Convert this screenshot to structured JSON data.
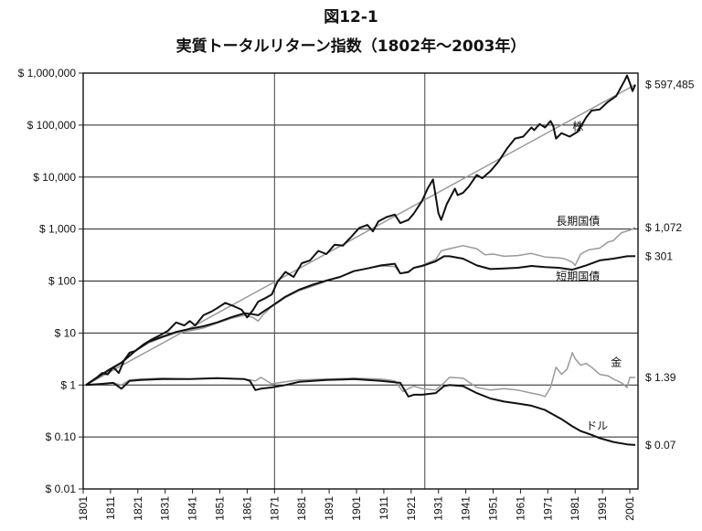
{
  "figure_number": "図12-1",
  "title": "実質トータルリターン指数（1802年〜2003年）",
  "chart_data": {
    "type": "line",
    "title": "実質トータルリターン指数（1802年〜2003年）",
    "y_scale": "log",
    "ylim": [
      0.01,
      1000000
    ],
    "xlim": [
      1801,
      2004
    ],
    "grid": true,
    "y_tick_values": [
      0.01,
      0.1,
      1,
      10,
      100,
      1000,
      10000,
      100000,
      1000000
    ],
    "y_tick_labels": [
      "$ 0.01",
      "$ 0.10",
      "$ 1",
      "$ 10",
      "$ 100",
      "$ 1,000",
      "$ 10,000",
      "$ 100,000",
      "$ 1,000,000"
    ],
    "x_tick_values": [
      1801,
      1811,
      1821,
      1831,
      1841,
      1851,
      1861,
      1871,
      1881,
      1891,
      1901,
      1911,
      1921,
      1931,
      1941,
      1951,
      1961,
      1971,
      1981,
      1991,
      2001
    ],
    "x_tick_labels": [
      "1801",
      "1811",
      "1821",
      "1831",
      "1841",
      "1851",
      "1861",
      "1871",
      "1881",
      "1891",
      "1901",
      "1911",
      "1921",
      "1931",
      "1941",
      "1951",
      "1961",
      "1971",
      "1981",
      "1991",
      "2001"
    ],
    "vertical_markers": [
      1871,
      1926
    ],
    "series": [
      {
        "name": "株",
        "end_label": "$ 597,485",
        "color": "#111111",
        "label_at": [
          1982,
          80000
        ],
        "x": [
          1802,
          1806,
          1808,
          1810,
          1812,
          1814,
          1816,
          1818,
          1820,
          1823,
          1826,
          1829,
          1832,
          1835,
          1838,
          1840,
          1842,
          1845,
          1848,
          1850,
          1853,
          1856,
          1859,
          1861,
          1863,
          1865,
          1867,
          1870,
          1872,
          1875,
          1878,
          1881,
          1884,
          1887,
          1890,
          1893,
          1896,
          1899,
          1902,
          1905,
          1907,
          1909,
          1912,
          1915,
          1917,
          1920,
          1922,
          1925,
          1927,
          1929,
          1931,
          1932,
          1934,
          1937,
          1938,
          1940,
          1942,
          1945,
          1947,
          1950,
          1953,
          1956,
          1959,
          1962,
          1965,
          1966,
          1968,
          1970,
          1972,
          1973,
          1974,
          1976,
          1979,
          1982,
          1985,
          1987,
          1990,
          1993,
          1996,
          1999,
          2000,
          2001,
          2002,
          2003
        ],
        "y": [
          1,
          1.4,
          1.7,
          1.6,
          2.2,
          1.7,
          3.0,
          4.2,
          4.5,
          6.0,
          7.5,
          9.0,
          11,
          16,
          14,
          17,
          14,
          22,
          26,
          30,
          38,
          33,
          28,
          20,
          27,
          40,
          45,
          55,
          95,
          150,
          120,
          220,
          250,
          380,
          330,
          500,
          480,
          700,
          1050,
          1200,
          900,
          1400,
          1700,
          1900,
          1300,
          1500,
          2000,
          3500,
          6000,
          9000,
          2000,
          1500,
          3000,
          6000,
          4500,
          5000,
          6500,
          11000,
          9500,
          13000,
          20000,
          35000,
          55000,
          60000,
          90000,
          80000,
          105000,
          90000,
          120000,
          95000,
          55000,
          70000,
          60000,
          75000,
          140000,
          190000,
          200000,
          280000,
          360000,
          700000,
          900000,
          650000,
          450000,
          597485
        ]
      },
      {
        "name": "長期国債",
        "end_label": "$ 1,072",
        "color": "#9a9a9a",
        "label_at": [
          1982,
          1200
        ],
        "x": [
          1802,
          1810,
          1815,
          1820,
          1825,
          1830,
          1835,
          1840,
          1845,
          1850,
          1855,
          1860,
          1863,
          1865,
          1867,
          1870,
          1875,
          1880,
          1885,
          1890,
          1895,
          1900,
          1905,
          1910,
          1915,
          1917,
          1920,
          1922,
          1925,
          1930,
          1932,
          1935,
          1940,
          1945,
          1948,
          1951,
          1955,
          1960,
          1965,
          1970,
          1975,
          1977,
          1980,
          1981,
          1983,
          1986,
          1990,
          1993,
          1995,
          1998,
          2001,
          2003
        ],
        "y": [
          1,
          1.8,
          2.6,
          4.5,
          6.5,
          8.2,
          10,
          11,
          12.5,
          15.5,
          19,
          22,
          20,
          17,
          23,
          32,
          48,
          65,
          80,
          100,
          120,
          155,
          175,
          195,
          190,
          140,
          145,
          180,
          200,
          260,
          380,
          420,
          480,
          420,
          320,
          330,
          300,
          310,
          340,
          290,
          280,
          270,
          230,
          200,
          330,
          400,
          430,
          560,
          600,
          850,
          950,
          1072
        ]
      },
      {
        "name": "短期国債",
        "end_label": "$ 301",
        "color": "#111111",
        "label_at": [
          1982,
          105
        ],
        "x": [
          1802,
          1810,
          1815,
          1820,
          1825,
          1830,
          1835,
          1840,
          1845,
          1850,
          1855,
          1860,
          1863,
          1865,
          1867,
          1870,
          1875,
          1880,
          1885,
          1890,
          1895,
          1900,
          1905,
          1910,
          1915,
          1917,
          1920,
          1922,
          1925,
          1930,
          1933,
          1935,
          1940,
          1945,
          1950,
          1955,
          1960,
          1965,
          1970,
          1975,
          1980,
          1985,
          1990,
          1995,
          2000,
          2003
        ],
        "y": [
          1,
          1.9,
          2.7,
          4.5,
          6.8,
          8.5,
          10.5,
          12,
          13.5,
          16,
          20,
          24,
          23,
          22,
          26,
          33,
          50,
          68,
          85,
          102,
          120,
          155,
          175,
          200,
          215,
          140,
          150,
          180,
          195,
          240,
          300,
          300,
          270,
          200,
          170,
          175,
          180,
          195,
          185,
          180,
          165,
          200,
          250,
          270,
          300,
          301
        ]
      },
      {
        "name": "金",
        "end_label": "$ 1.39",
        "color": "#9a9a9a",
        "label_at": [
          1996,
          2.3
        ],
        "x": [
          1802,
          1808,
          1812,
          1815,
          1818,
          1822,
          1830,
          1840,
          1850,
          1860,
          1862,
          1864,
          1866,
          1870,
          1875,
          1880,
          1890,
          1900,
          1910,
          1915,
          1918,
          1920,
          1922,
          1925,
          1930,
          1933,
          1935,
          1940,
          1945,
          1950,
          1955,
          1960,
          1965,
          1968,
          1970,
          1972,
          1974,
          1976,
          1978,
          1980,
          1981,
          1983,
          1985,
          1987,
          1990,
          1993,
          1995,
          1998,
          2000,
          2001,
          2003
        ],
        "y": [
          1,
          1.05,
          1.1,
          1.0,
          1.25,
          1.3,
          1.35,
          1.3,
          1.35,
          1.3,
          1.25,
          1.2,
          1.4,
          1.05,
          1.15,
          1.25,
          1.3,
          1.35,
          1.3,
          1.2,
          0.75,
          0.85,
          0.95,
          0.85,
          0.8,
          1.1,
          1.4,
          1.35,
          0.9,
          0.8,
          0.85,
          0.8,
          0.7,
          0.65,
          0.6,
          0.9,
          2.2,
          1.6,
          2.0,
          4.2,
          3.2,
          2.4,
          2.6,
          2.2,
          1.6,
          1.5,
          1.3,
          1.1,
          0.9,
          1.4,
          1.39
        ]
      },
      {
        "name": "ドル",
        "end_label": "$ 0.07",
        "color": "#111111",
        "label_at": [
          1989,
          0.14
        ],
        "x": [
          1802,
          1808,
          1812,
          1815,
          1818,
          1822,
          1830,
          1840,
          1850,
          1860,
          1862,
          1864,
          1866,
          1870,
          1875,
          1880,
          1890,
          1900,
          1910,
          1917,
          1920,
          1922,
          1925,
          1930,
          1933,
          1935,
          1940,
          1945,
          1950,
          1955,
          1960,
          1965,
          1970,
          1973,
          1976,
          1980,
          1983,
          1987,
          1990,
          1995,
          2000,
          2003
        ],
        "y": [
          1,
          1.05,
          1.1,
          0.85,
          1.2,
          1.25,
          1.3,
          1.3,
          1.35,
          1.3,
          1.2,
          0.8,
          0.85,
          0.9,
          1.0,
          1.15,
          1.25,
          1.3,
          1.2,
          1.1,
          0.6,
          0.65,
          0.65,
          0.7,
          0.95,
          1.0,
          0.95,
          0.7,
          0.55,
          0.48,
          0.44,
          0.4,
          0.33,
          0.27,
          0.22,
          0.16,
          0.13,
          0.11,
          0.095,
          0.08,
          0.072,
          0.07
        ]
      },
      {
        "name": "",
        "color": "#9a9a9a",
        "x": [
          1802,
          2003
        ],
        "y": [
          1,
          597485
        ]
      }
    ]
  }
}
